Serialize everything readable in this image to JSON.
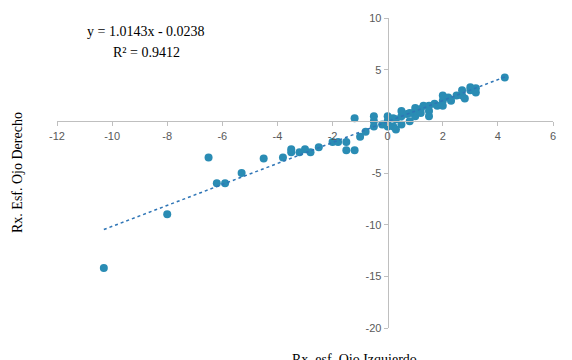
{
  "chart_data": {
    "type": "scatter",
    "x_label": "Rx. esf. Ojo Izquierdo",
    "y_label": "Rx. Esf. Ojo Derecho",
    "annotations": [
      "y = 1.0143x - 0.0238",
      "R² = 0.9412"
    ],
    "xlim": [
      -12,
      6
    ],
    "xticks": [
      -12,
      -10,
      -8,
      -6,
      -4,
      -2,
      0,
      2,
      4,
      6
    ],
    "ylim": [
      -20,
      10
    ],
    "yticks": [
      -20,
      -15,
      -10,
      -5,
      5,
      10
    ],
    "grid": false,
    "series": [
      {
        "type": "scatter",
        "marker": "circle",
        "color": "#2a8cb4",
        "x": [
          -10.3,
          -8,
          -6.5,
          -6.2,
          -5.9,
          -5.3,
          -4.5,
          -3.8,
          -3.5,
          -3.5,
          -3.2,
          -3,
          -2.8,
          -2.5,
          -2,
          -1.8,
          -1.5,
          -1.5,
          -1.2,
          -1.2,
          -1,
          -0.8,
          -0.5,
          -0.5,
          -0.2,
          0,
          0,
          0.2,
          0.2,
          0.3,
          0.5,
          0.5,
          0.5,
          0.7,
          0.8,
          1,
          1,
          1,
          1.2,
          1.2,
          1.3,
          1.5,
          1.5,
          1.7,
          1.8,
          2,
          2,
          2,
          2.2,
          2.5,
          2.7,
          2.7,
          3,
          3,
          3.2,
          3.2,
          2.8,
          4.25,
          -0.5,
          0.3,
          0.8,
          1.5,
          2.3,
          0
        ],
        "values": [
          -14.2,
          -9,
          -3.5,
          -6,
          -6,
          -5,
          -3.6,
          -3.5,
          -3,
          -2.7,
          -3,
          -2.7,
          -3,
          -2.5,
          -2,
          -2,
          -2,
          -2.8,
          -2.8,
          0.3,
          -1.5,
          -1,
          -0.5,
          0,
          -0.3,
          0,
          -0.5,
          0.3,
          -0.5,
          0.2,
          0.5,
          -0.3,
          1,
          0.7,
          0,
          1,
          0.5,
          1.3,
          1.2,
          0.8,
          1.5,
          1.5,
          1,
          1.7,
          1.5,
          2,
          2.5,
          1.5,
          2.3,
          2.5,
          2.5,
          3,
          3,
          3.3,
          2.8,
          3.2,
          2.2,
          4.25,
          0.5,
          -0.8,
          0.8,
          0.5,
          2,
          0.5
        ]
      },
      {
        "type": "line",
        "line_style": "dotted",
        "color": "#2e75b6",
        "x": [
          -10.3,
          4.25
        ],
        "values": [
          -10.47,
          4.29
        ]
      }
    ]
  }
}
